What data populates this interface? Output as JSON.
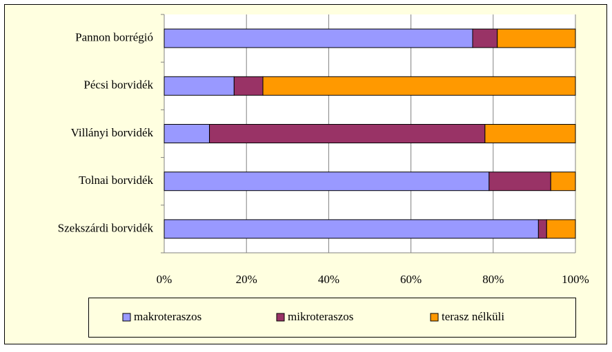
{
  "chart_data": {
    "type": "stacked-bar-horizontal",
    "categories": [
      "Pannon borrégió",
      "Pécsi borvidék",
      "Villányi borvidék",
      "Tolnai borvidék",
      "Szekszárdi borvidék"
    ],
    "series": [
      {
        "name": "makroteraszos",
        "color": "#9999ff",
        "values": [
          75,
          17,
          11,
          79,
          91
        ]
      },
      {
        "name": "mikroteraszos",
        "color": "#993366",
        "values": [
          6,
          7,
          67,
          15,
          2
        ]
      },
      {
        "name": "terasz nélküli",
        "color": "#ff9900",
        "values": [
          19,
          76,
          22,
          6,
          7
        ]
      }
    ],
    "xlim": [
      0,
      100
    ],
    "xticks": [
      {
        "value": 0,
        "label": "0%"
      },
      {
        "value": 20,
        "label": "20%"
      },
      {
        "value": 40,
        "label": "40%"
      },
      {
        "value": 60,
        "label": "60%"
      },
      {
        "value": 80,
        "label": "80%"
      },
      {
        "value": 100,
        "label": "100%"
      }
    ],
    "grid": true,
    "legend": "bottom"
  }
}
